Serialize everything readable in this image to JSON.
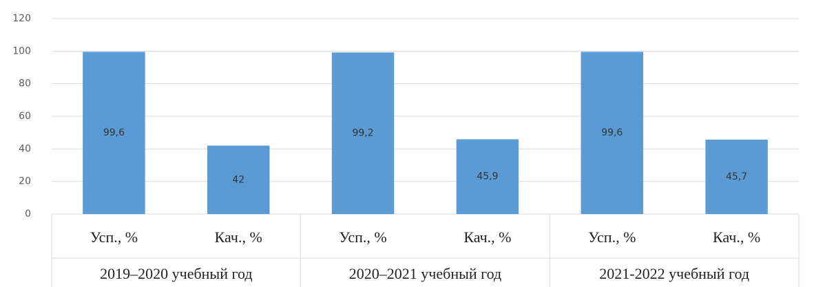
{
  "chart_data": {
    "type": "bar",
    "color": "#5b9bd5",
    "groups": [
      {
        "name": "2019–2020 учебный год",
        "categories": [
          "Усп., %",
          "Кач., %"
        ],
        "values": [
          99.6,
          42
        ],
        "value_labels": [
          "99,6",
          "42"
        ]
      },
      {
        "name": "2020–2021 учебный год",
        "categories": [
          "Усп., %",
          "Кач., %"
        ],
        "values": [
          99.2,
          45.9
        ],
        "value_labels": [
          "99,2",
          "45,9"
        ]
      },
      {
        "name": "2021-2022 учебный год",
        "categories": [
          "Усп., %",
          "Кач., %"
        ],
        "values": [
          99.6,
          45.7
        ],
        "value_labels": [
          "99,6",
          "45,7"
        ]
      }
    ],
    "ylim": [
      0,
      120
    ],
    "yticks": [
      0,
      20,
      40,
      60,
      80,
      100,
      120
    ],
    "grid": true
  }
}
